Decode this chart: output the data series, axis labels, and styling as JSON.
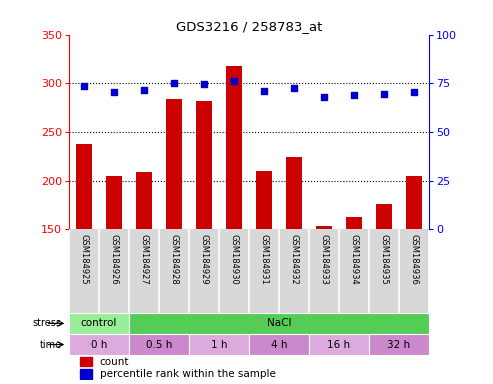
{
  "title": "GDS3216 / 258783_at",
  "samples": [
    "GSM184925",
    "GSM184926",
    "GSM184927",
    "GSM184928",
    "GSM184929",
    "GSM184930",
    "GSM184931",
    "GSM184932",
    "GSM184933",
    "GSM184934",
    "GSM184935",
    "GSM184936"
  ],
  "counts": [
    238,
    205,
    209,
    284,
    282,
    318,
    210,
    224,
    153,
    163,
    176,
    205
  ],
  "percentiles": [
    73.5,
    70.5,
    71.5,
    75.2,
    74.5,
    76.0,
    71.0,
    72.5,
    68.0,
    69.0,
    69.5,
    70.5
  ],
  "ylim_left": [
    150,
    350
  ],
  "ylim_right": [
    0,
    100
  ],
  "yticks_left": [
    150,
    200,
    250,
    300,
    350
  ],
  "yticks_right": [
    0,
    25,
    50,
    75,
    100
  ],
  "bar_color": "#cc0000",
  "dot_color": "#0000cc",
  "stress_labels": [
    {
      "label": "control",
      "start": 0,
      "end": 2,
      "color": "#99ee99"
    },
    {
      "label": "NaCl",
      "start": 2,
      "end": 12,
      "color": "#55cc55"
    }
  ],
  "time_labels": [
    {
      "label": "0 h",
      "start": 0,
      "end": 2,
      "color": "#ddaadd"
    },
    {
      "label": "0.5 h",
      "start": 2,
      "end": 4,
      "color": "#cc88cc"
    },
    {
      "label": "1 h",
      "start": 4,
      "end": 6,
      "color": "#ddaadd"
    },
    {
      "label": "4 h",
      "start": 6,
      "end": 8,
      "color": "#cc88cc"
    },
    {
      "label": "16 h",
      "start": 8,
      "end": 10,
      "color": "#ddaadd"
    },
    {
      "label": "32 h",
      "start": 10,
      "end": 12,
      "color": "#cc88cc"
    }
  ],
  "bg_color": "#ffffff",
  "tick_label_area_color": "#d8d8d8"
}
